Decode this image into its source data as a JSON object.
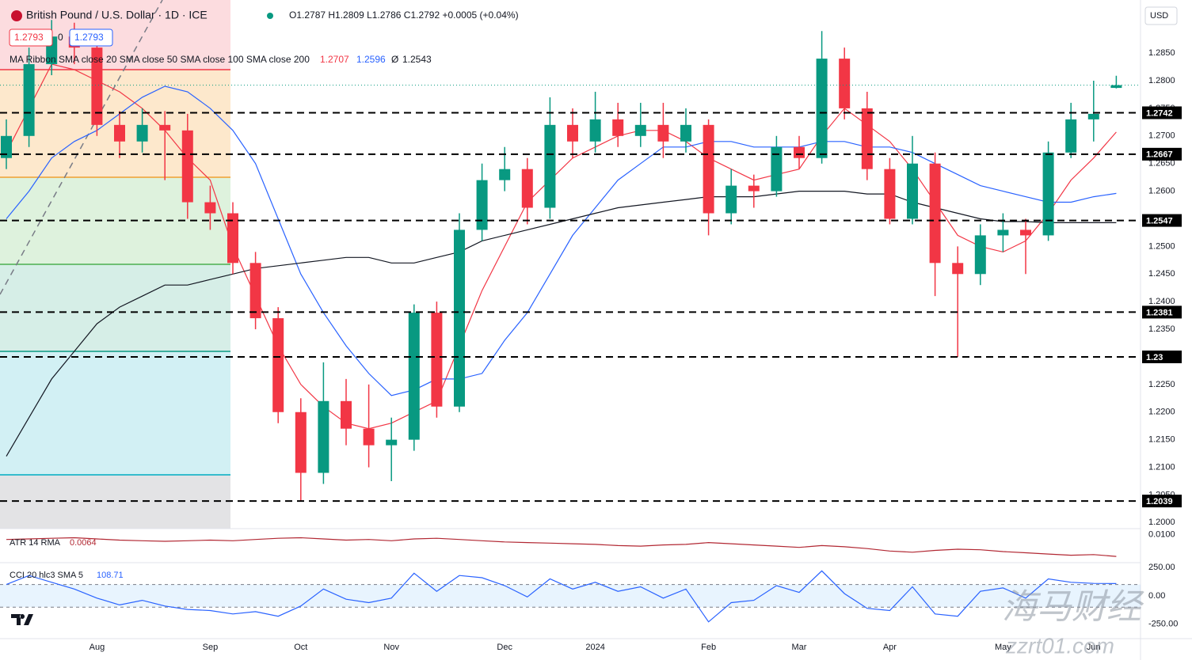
{
  "chart_data": {
    "type": "candlestick",
    "title": "British Pound / U.S. Dollar · 1D · ICE",
    "ohlc_label": "O1.2787 H1.2809 L1.2786 C1.2792 +0.0005 (+0.04%)",
    "sell_price": 1.2793,
    "spread": 0,
    "buy_price": 1.2793,
    "currency": "USD",
    "categories": [
      null,
      null,
      null,
      null,
      "Aug",
      null,
      null,
      null,
      null,
      "Sep",
      null,
      null,
      null,
      "Oct",
      null,
      null,
      null,
      "Nov",
      null,
      null,
      null,
      null,
      "Dec",
      null,
      null,
      null,
      "2024",
      null,
      null,
      null,
      null,
      "Feb",
      null,
      null,
      null,
      "Mar",
      null,
      null,
      null,
      "Apr",
      null,
      null,
      null,
      null,
      "May",
      null,
      null,
      null,
      "Jun",
      null
    ],
    "open": [
      1.266,
      1.27,
      1.283,
      1.288,
      1.286,
      1.272,
      1.269,
      1.272,
      1.271,
      1.258,
      1.256,
      1.247,
      1.237,
      1.22,
      1.209,
      1.222,
      1.217,
      1.214,
      1.215,
      1.238,
      1.221,
      1.253,
      1.262,
      1.264,
      1.257,
      1.272,
      1.269,
      1.273,
      1.27,
      1.272,
      1.269,
      1.272,
      1.256,
      1.261,
      1.26,
      1.268,
      1.266,
      1.284,
      1.275,
      1.264,
      1.255,
      1.265,
      1.247,
      1.245,
      1.252,
      1.253,
      1.252,
      1.267,
      1.273,
      1.2787
    ],
    "high": [
      1.273,
      1.286,
      1.291,
      1.2905,
      1.2885,
      1.2745,
      1.275,
      1.2745,
      1.274,
      1.261,
      1.258,
      1.249,
      1.239,
      1.2225,
      1.229,
      1.226,
      1.225,
      1.219,
      1.2395,
      1.24,
      1.256,
      1.265,
      1.268,
      1.266,
      1.277,
      1.275,
      1.278,
      1.276,
      1.276,
      1.276,
      1.275,
      1.273,
      1.264,
      1.263,
      1.27,
      1.27,
      1.289,
      1.286,
      1.278,
      1.266,
      1.27,
      1.267,
      1.25,
      1.254,
      1.256,
      1.255,
      1.269,
      1.276,
      1.28,
      1.2809
    ],
    "low": [
      1.264,
      1.268,
      1.281,
      1.283,
      1.27,
      1.266,
      1.267,
      1.262,
      1.255,
      1.253,
      1.245,
      1.235,
      1.218,
      1.2039,
      1.207,
      1.214,
      1.21,
      1.2075,
      1.213,
      1.219,
      1.22,
      1.251,
      1.26,
      1.254,
      1.255,
      1.266,
      1.267,
      1.268,
      1.268,
      1.266,
      1.267,
      1.252,
      1.254,
      1.257,
      1.259,
      1.264,
      1.265,
      1.273,
      1.262,
      1.254,
      1.254,
      1.241,
      1.23,
      1.243,
      1.249,
      1.245,
      1.251,
      1.266,
      1.269,
      1.2786
    ],
    "close": [
      1.27,
      1.283,
      1.288,
      1.286,
      1.272,
      1.269,
      1.272,
      1.271,
      1.258,
      1.256,
      1.247,
      1.237,
      1.22,
      1.209,
      1.222,
      1.217,
      1.214,
      1.215,
      1.238,
      1.221,
      1.253,
      1.262,
      1.264,
      1.257,
      1.272,
      1.269,
      1.273,
      1.27,
      1.272,
      1.269,
      1.272,
      1.256,
      1.261,
      1.26,
      1.268,
      1.266,
      1.284,
      1.275,
      1.264,
      1.255,
      1.265,
      1.247,
      1.245,
      1.252,
      1.253,
      1.252,
      1.267,
      1.273,
      1.274,
      1.2792
    ],
    "up_color": "#089981",
    "down_color": "#f23645",
    "ylim": [
      1.1989,
      1.2939
    ],
    "yticks": [
      {
        "value": 1.2,
        "label": "1.2000"
      },
      {
        "value": 1.205,
        "label": "1.2050"
      },
      {
        "value": 1.21,
        "label": "1.2100"
      },
      {
        "value": 1.215,
        "label": "1.2150"
      },
      {
        "value": 1.22,
        "label": "1.2200"
      },
      {
        "value": 1.225,
        "label": "1.2250"
      },
      {
        "value": 1.23,
        "label": "1.2300"
      },
      {
        "value": 1.235,
        "label": "1.2350"
      },
      {
        "value": 1.24,
        "label": "1.2400"
      },
      {
        "value": 1.245,
        "label": "1.2450"
      },
      {
        "value": 1.25,
        "label": "1.2500"
      },
      {
        "value": 1.255,
        "label": "1.2550"
      },
      {
        "value": 1.26,
        "label": "1.2600"
      },
      {
        "value": 1.265,
        "label": "1.2650"
      },
      {
        "value": 1.27,
        "label": "1.2700"
      },
      {
        "value": 1.275,
        "label": "1.2750"
      },
      {
        "value": 1.28,
        "label": "1.2800"
      },
      {
        "value": 1.285,
        "label": "1.2850"
      }
    ],
    "levels": [
      1.2742,
      1.2667,
      1.2547,
      1.2381,
      1.23,
      1.2039
    ],
    "ma_ribbon": {
      "label": "MA Ribbon SMA close 20 SMA close 50 SMA close 100 SMA close 200",
      "missing_label": "Ø",
      "series": [
        {
          "color": "#f23645",
          "values": [
            1.267,
            1.275,
            1.283,
            1.282,
            1.28,
            1.278,
            1.275,
            1.271,
            1.266,
            1.262,
            1.25,
            1.241,
            1.232,
            1.225,
            1.221,
            1.218,
            1.217,
            1.218,
            1.22,
            1.222,
            1.232,
            1.242,
            1.25,
            1.258,
            1.262,
            1.266,
            1.268,
            1.27,
            1.271,
            1.271,
            1.269,
            1.266,
            1.264,
            1.262,
            1.263,
            1.264,
            1.27,
            1.275,
            1.272,
            1.269,
            1.264,
            1.258,
            1.252,
            1.25,
            1.249,
            1.251,
            1.256,
            1.262,
            1.266,
            1.2707
          ]
        },
        {
          "color": "#2962ff",
          "values": [
            1.255,
            1.26,
            1.266,
            1.269,
            1.271,
            1.274,
            1.277,
            1.279,
            1.278,
            1.275,
            1.271,
            1.265,
            1.255,
            1.245,
            1.238,
            1.232,
            1.227,
            1.223,
            1.224,
            1.226,
            1.226,
            1.227,
            1.233,
            1.238,
            1.245,
            1.252,
            1.257,
            1.262,
            1.265,
            1.268,
            1.268,
            1.269,
            1.269,
            1.268,
            1.268,
            1.268,
            1.269,
            1.269,
            1.268,
            1.268,
            1.267,
            1.265,
            1.263,
            1.261,
            1.26,
            1.259,
            1.258,
            1.258,
            1.259,
            1.2596
          ]
        },
        {
          "color": "#131722",
          "values": [
            1.212,
            1.219,
            1.226,
            1.231,
            1.236,
            1.239,
            1.241,
            1.243,
            1.243,
            1.244,
            1.245,
            1.246,
            1.2465,
            1.247,
            1.2475,
            1.248,
            1.248,
            1.247,
            1.247,
            1.248,
            1.249,
            1.251,
            1.252,
            1.253,
            1.254,
            1.255,
            1.256,
            1.257,
            1.2575,
            1.258,
            1.2585,
            1.259,
            1.259,
            1.259,
            1.2595,
            1.26,
            1.26,
            1.26,
            1.2595,
            1.2595,
            1.258,
            1.257,
            1.256,
            1.255,
            1.2545,
            1.2545,
            1.2543,
            1.2543,
            1.2543,
            1.2543
          ]
        }
      ]
    },
    "atr": {
      "label": "ATR 14 RMA",
      "color": "#b22833",
      "values": [
        0.0092,
        0.0093,
        0.0094,
        0.0095,
        0.0093,
        0.0091,
        0.009,
        0.0089,
        0.009,
        0.0091,
        0.009,
        0.0092,
        0.0094,
        0.0095,
        0.0093,
        0.0091,
        0.0092,
        0.009,
        0.0093,
        0.0094,
        0.0092,
        0.009,
        0.0088,
        0.0087,
        0.0086,
        0.0085,
        0.0084,
        0.0082,
        0.0081,
        0.0083,
        0.0084,
        0.0087,
        0.0085,
        0.0083,
        0.0081,
        0.0079,
        0.0082,
        0.008,
        0.0077,
        0.0073,
        0.0071,
        0.0074,
        0.0076,
        0.0075,
        0.0072,
        0.007,
        0.0068,
        0.0066,
        0.0067,
        0.0064
      ],
      "ylim": [
        0.0055,
        0.011
      ],
      "yticks": [
        {
          "value": 0.01,
          "label": "0.0100"
        }
      ]
    },
    "cci": {
      "label": "CCI 20 hlc3 SMA 5",
      "color": "#2962ff",
      "values": [
        100,
        180,
        120,
        60,
        -20,
        -80,
        -40,
        -90,
        -120,
        -130,
        -160,
        -140,
        -180,
        -90,
        60,
        -30,
        -60,
        -20,
        200,
        40,
        180,
        160,
        90,
        -10,
        150,
        60,
        120,
        40,
        80,
        -20,
        60,
        -230,
        -60,
        -40,
        90,
        30,
        220,
        20,
        -110,
        -130,
        80,
        -160,
        -180,
        40,
        70,
        -20,
        150,
        120,
        110,
        108.71
      ],
      "ylim": [
        -378,
        286
      ],
      "band": [
        -100,
        100
      ],
      "yticks": [
        {
          "value": 250,
          "label": "250.00"
        },
        {
          "value": 0,
          "label": "0.00"
        },
        {
          "value": -250,
          "label": "-250.00"
        }
      ]
    },
    "watermark": [
      "海马财经",
      "zzrt01.com"
    ]
  }
}
